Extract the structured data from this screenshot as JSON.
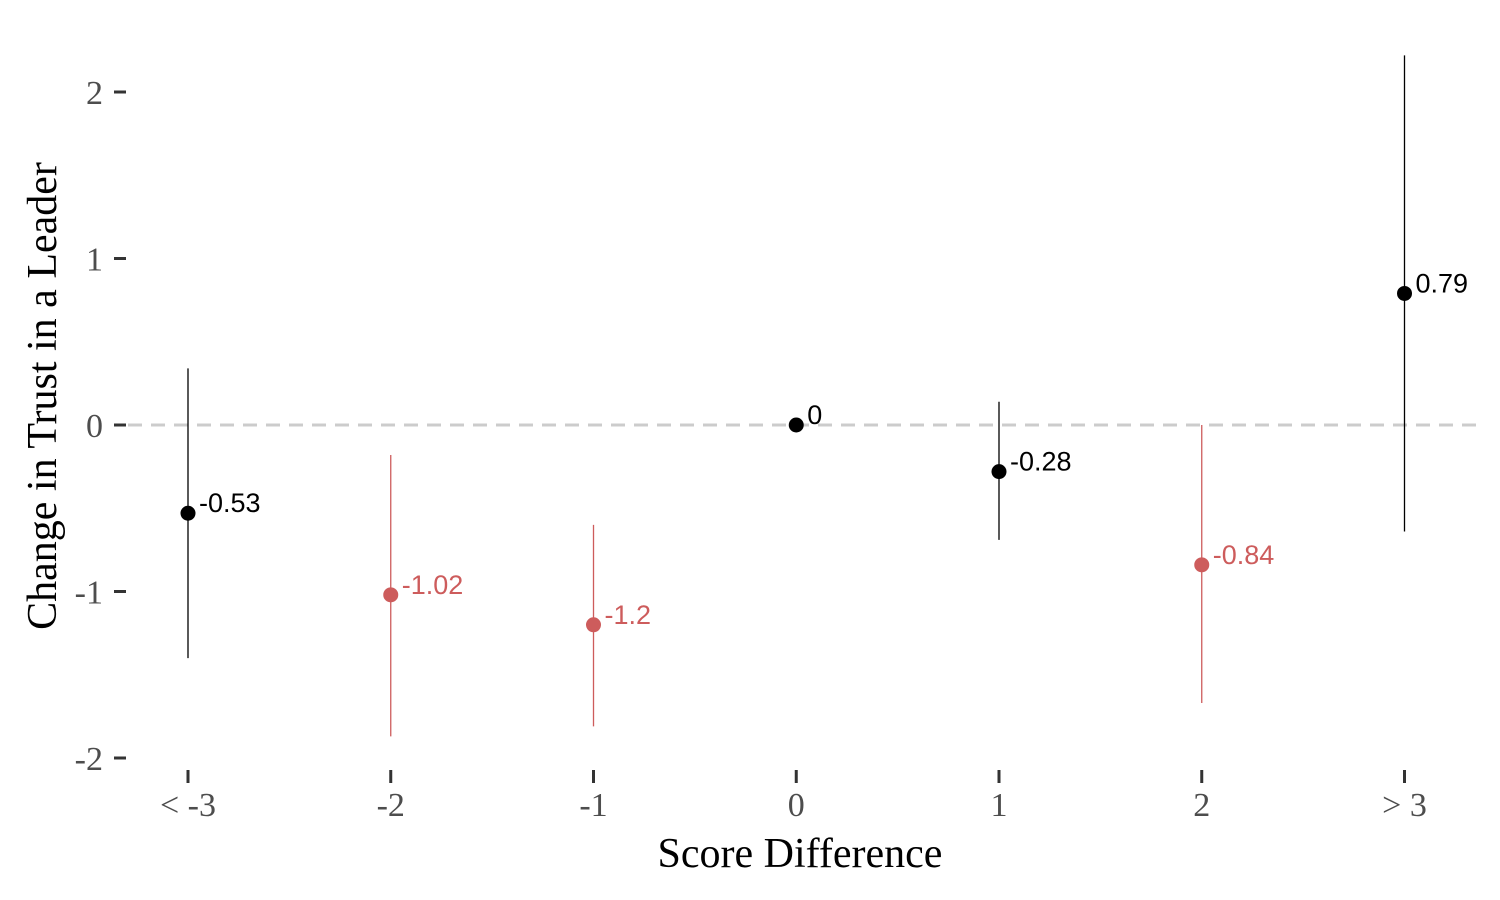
{
  "chart_data": {
    "type": "scatter",
    "xlabel": "Score Difference",
    "ylabel": "Change in Trust in a Leader",
    "categories": [
      "< -3",
      "-2",
      "-1",
      "0",
      "1",
      "2",
      "> 3"
    ],
    "ylim": [
      -2,
      2.2
    ],
    "yticks": [
      2,
      1,
      0,
      -1,
      -2
    ],
    "ytick_labels": [
      "2",
      "1",
      "0",
      "-1",
      "-2"
    ],
    "reference_line": 0,
    "grid": false,
    "legend": "none",
    "colors": {
      "default": "#000000",
      "highlight": "#cd5c5c",
      "reference": "#cccccc",
      "tick_label": "#4d4d4d"
    },
    "points": [
      {
        "category": "< -3",
        "estimate": -0.53,
        "lower": -1.4,
        "upper": 0.34,
        "label": "-0.53",
        "highlight": false
      },
      {
        "category": "-2",
        "estimate": -1.02,
        "lower": -1.87,
        "upper": -0.18,
        "label": "-1.02",
        "highlight": true
      },
      {
        "category": "-1",
        "estimate": -1.2,
        "lower": -1.81,
        "upper": -0.6,
        "label": "-1.2",
        "highlight": true
      },
      {
        "category": "0",
        "estimate": 0,
        "lower": null,
        "upper": null,
        "label": "0",
        "highlight": false
      },
      {
        "category": "1",
        "estimate": -0.28,
        "lower": -0.69,
        "upper": 0.14,
        "label": "-0.28",
        "highlight": false
      },
      {
        "category": "2",
        "estimate": -0.84,
        "lower": -1.67,
        "upper": 0.0,
        "label": "-0.84",
        "highlight": true
      },
      {
        "category": "> 3",
        "estimate": 0.79,
        "lower": -0.64,
        "upper": 2.22,
        "label": "0.79",
        "highlight": false
      }
    ]
  }
}
